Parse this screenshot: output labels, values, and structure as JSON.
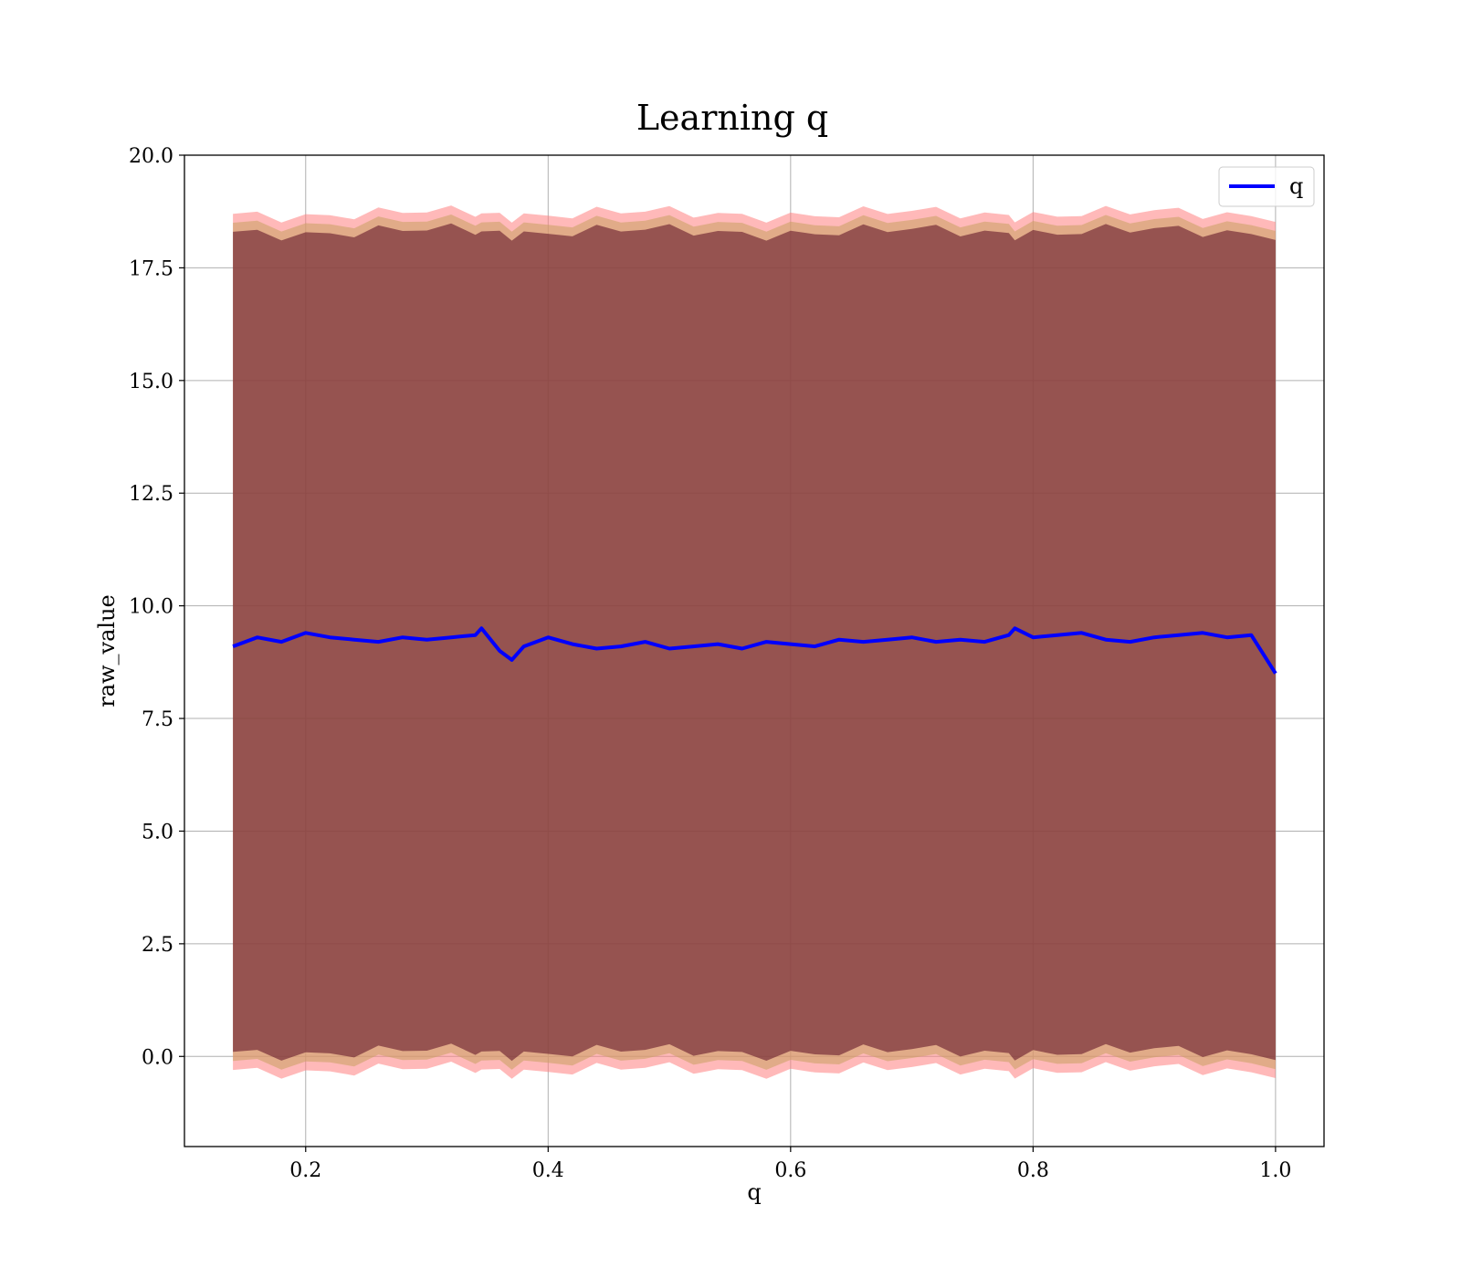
{
  "chart_data": {
    "type": "line",
    "title": "Learning q",
    "xlabel": "q",
    "ylabel": "raw_value",
    "xlim": [
      0.1,
      1.04
    ],
    "ylim": [
      -2.0,
      20.0
    ],
    "xticks": [
      0.2,
      0.4,
      0.6,
      0.8,
      1.0
    ],
    "xtick_labels": [
      "0.2",
      "0.4",
      "0.6",
      "0.8",
      "1.0"
    ],
    "yticks": [
      0.0,
      2.5,
      5.0,
      7.5,
      10.0,
      12.5,
      15.0,
      17.5,
      20.0
    ],
    "ytick_labels": [
      "0.0",
      "2.5",
      "5.0",
      "7.5",
      "10.0",
      "12.5",
      "15.0",
      "17.5",
      "20.0"
    ],
    "grid": true,
    "legend": {
      "placement": "upper right",
      "entries": [
        "q"
      ]
    },
    "colors": {
      "line": "#0000ff",
      "band_inner": "#5a0b23",
      "band_middle": "#c8a060",
      "band_outer": "#ff8080"
    },
    "series": [
      {
        "name": "q",
        "x": [
          0.14,
          0.16,
          0.18,
          0.2,
          0.22,
          0.24,
          0.26,
          0.28,
          0.3,
          0.32,
          0.34,
          0.345,
          0.36,
          0.37,
          0.38,
          0.4,
          0.42,
          0.44,
          0.46,
          0.48,
          0.5,
          0.52,
          0.54,
          0.56,
          0.58,
          0.6,
          0.62,
          0.64,
          0.66,
          0.68,
          0.7,
          0.72,
          0.74,
          0.76,
          0.78,
          0.785,
          0.8,
          0.82,
          0.84,
          0.86,
          0.88,
          0.9,
          0.92,
          0.94,
          0.96,
          0.98,
          1.0
        ],
        "y": [
          9.1,
          9.3,
          9.2,
          9.4,
          9.3,
          9.25,
          9.2,
          9.3,
          9.25,
          9.3,
          9.35,
          9.5,
          9.0,
          8.8,
          9.1,
          9.3,
          9.15,
          9.05,
          9.1,
          9.2,
          9.05,
          9.1,
          9.15,
          9.05,
          9.2,
          9.15,
          9.1,
          9.25,
          9.2,
          9.25,
          9.3,
          9.2,
          9.25,
          9.2,
          9.35,
          9.5,
          9.3,
          9.35,
          9.4,
          9.25,
          9.2,
          9.3,
          9.35,
          9.4,
          9.3,
          9.35,
          8.5
        ],
        "band_inner": {
          "lower": 0.1,
          "upper": 18.3
        },
        "band_middle": {
          "lower": -0.1,
          "upper": 18.5
        },
        "band_outer": {
          "lower": -0.3,
          "upper": 18.7
        }
      }
    ]
  }
}
